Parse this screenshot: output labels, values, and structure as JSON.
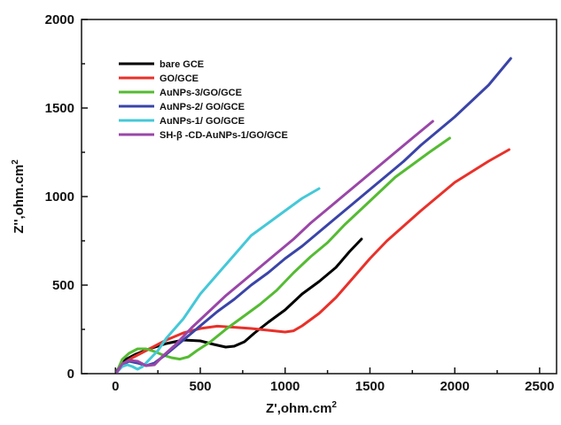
{
  "chart_data": {
    "type": "line",
    "xlabel": "Z',ohm.cm",
    "xlabel_sup": "2",
    "ylabel": "Z'',ohm.cm",
    "ylabel_sup": "2",
    "xlim": [
      -200,
      2600
    ],
    "ylim": [
      0,
      2000
    ],
    "x_ticks": [
      0,
      500,
      1000,
      1500,
      2000,
      2500
    ],
    "y_ticks": [
      0,
      500,
      1000,
      1500,
      2000
    ],
    "legend_position": "top-left",
    "grid": false,
    "series": [
      {
        "name": "bare GCE",
        "color": "#000000",
        "x": [
          10,
          60,
          120,
          200,
          300,
          400,
          500,
          580,
          650,
          700,
          760,
          820,
          900,
          1000,
          1100,
          1200,
          1300,
          1380,
          1450
        ],
        "y": [
          20,
          80,
          110,
          140,
          170,
          190,
          185,
          165,
          150,
          155,
          180,
          230,
          290,
          360,
          450,
          520,
          600,
          690,
          760
        ]
      },
      {
        "name": "GO/GCE",
        "color": "#e8312a",
        "x": [
          10,
          50,
          100,
          200,
          300,
          400,
          500,
          600,
          700,
          800,
          900,
          1000,
          1050,
          1100,
          1200,
          1300,
          1400,
          1500,
          1600,
          1800,
          2000,
          2200,
          2320
        ],
        "y": [
          20,
          60,
          90,
          140,
          190,
          230,
          255,
          268,
          262,
          255,
          245,
          235,
          242,
          270,
          340,
          430,
          540,
          650,
          750,
          920,
          1080,
          1200,
          1265
        ]
      },
      {
        "name": "AuNPs-3/GO/GCE",
        "color": "#55bb33",
        "x": [
          10,
          40,
          80,
          130,
          180,
          230,
          280,
          330,
          380,
          430,
          480,
          560,
          650,
          750,
          850,
          950,
          1050,
          1150,
          1250,
          1350,
          1450,
          1550,
          1650,
          1750,
          1850,
          1970
        ],
        "y": [
          15,
          80,
          115,
          140,
          140,
          125,
          105,
          90,
          82,
          95,
          130,
          180,
          250,
          320,
          390,
          470,
          570,
          660,
          740,
          840,
          930,
          1020,
          1110,
          1180,
          1250,
          1330
        ]
      },
      {
        "name": "AuNPs-2/ GO/GCE",
        "color": "#3a44a8",
        "x": [
          10,
          40,
          80,
          130,
          180,
          230,
          300,
          400,
          500,
          600,
          700,
          800,
          900,
          1000,
          1100,
          1200,
          1300,
          1400,
          1500,
          1600,
          1700,
          1800,
          1900,
          2000,
          2100,
          2200,
          2330
        ],
        "y": [
          15,
          50,
          70,
          60,
          45,
          60,
          110,
          190,
          270,
          350,
          420,
          500,
          570,
          650,
          720,
          800,
          880,
          960,
          1040,
          1120,
          1200,
          1290,
          1370,
          1450,
          1540,
          1630,
          1780
        ]
      },
      {
        "name": "AuNPs-1/ GO/GCE",
        "color": "#44c8d8",
        "x": [
          10,
          40,
          70,
          100,
          130,
          160,
          200,
          250,
          300,
          400,
          500,
          600,
          700,
          800,
          900,
          1000,
          1100,
          1200
        ],
        "y": [
          10,
          40,
          50,
          40,
          25,
          40,
          80,
          130,
          200,
          310,
          450,
          560,
          670,
          780,
          850,
          920,
          990,
          1045
        ]
      },
      {
        "name": "SH-β -CD-AuNPs-1/GO/GCE",
        "color": "#9a46a8",
        "x": [
          10,
          40,
          80,
          130,
          180,
          230,
          280,
          350,
          450,
          550,
          650,
          750,
          850,
          950,
          1050,
          1150,
          1250,
          1350,
          1450,
          1550,
          1650,
          1750,
          1870
        ],
        "y": [
          10,
          55,
          75,
          70,
          45,
          50,
          100,
          160,
          260,
          350,
          440,
          520,
          600,
          680,
          760,
          850,
          930,
          1010,
          1090,
          1170,
          1250,
          1330,
          1425
        ]
      }
    ]
  }
}
